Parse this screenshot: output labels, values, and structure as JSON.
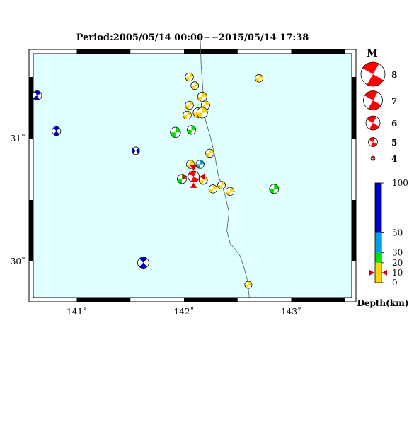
{
  "title": "Period:2005/05/14 00:00−−2015/05/14 17:38",
  "axes": {
    "lon_ticks": [
      {
        "value": 141,
        "label": "141˚"
      },
      {
        "value": 142,
        "label": "142˚"
      },
      {
        "value": 143,
        "label": "143˚"
      }
    ],
    "lat_ticks": [
      {
        "value": 31,
        "label": "31˚"
      },
      {
        "value": 30,
        "label": "30˚"
      }
    ],
    "lon_range": [
      140.55,
      143.6
    ],
    "lat_range": [
      29.7,
      31.85
    ]
  },
  "colors": {
    "ocean": "#e0ffff",
    "depth_0_10": "#ffd700",
    "depth_10_20": "#ffd700",
    "depth_20_30": "#00e000",
    "depth_30_50": "#00a0e0",
    "depth_50_100": "#0000c0",
    "legend_red": "#ff0000",
    "trench_line": "#555555",
    "marker": "#cc0000"
  },
  "magnitude_legend": {
    "heading": "M",
    "items": [
      {
        "label": "8",
        "magnitude": 8
      },
      {
        "label": "7",
        "magnitude": 7
      },
      {
        "label": "6",
        "magnitude": 6
      },
      {
        "label": "5",
        "magnitude": 5
      },
      {
        "label": "4",
        "magnitude": 4
      }
    ]
  },
  "depth_legend": {
    "title": "Depth(km)",
    "ticks": [
      {
        "label": "100",
        "depth": 100
      },
      {
        "label": "50",
        "depth": 50
      },
      {
        "label": "30",
        "depth": 30
      },
      {
        "label": "20",
        "depth": 20
      },
      {
        "label": "10",
        "depth": 10
      },
      {
        "label": "0",
        "depth": 0
      }
    ],
    "marker_depth": 10
  },
  "trench_line": [
    [
      142.15,
      31.85
    ],
    [
      142.16,
      31.6
    ],
    [
      142.18,
      31.35
    ],
    [
      142.2,
      31.15
    ],
    [
      142.25,
      31.0
    ],
    [
      142.29,
      30.85
    ],
    [
      142.32,
      30.7
    ],
    [
      142.38,
      30.55
    ],
    [
      142.42,
      30.4
    ],
    [
      142.4,
      30.25
    ],
    [
      142.43,
      30.15
    ],
    [
      142.52,
      30.05
    ],
    [
      142.56,
      29.95
    ],
    [
      142.59,
      29.85
    ],
    [
      142.61,
      29.7
    ]
  ],
  "events": [
    {
      "lon": 142.05,
      "lat": 31.5,
      "depth": 10,
      "magnitude": 4.8,
      "strike": 90
    },
    {
      "lon": 142.1,
      "lat": 31.43,
      "depth": 10,
      "magnitude": 4.7,
      "strike": 90
    },
    {
      "lon": 142.7,
      "lat": 31.49,
      "depth": 10,
      "magnitude": 4.7,
      "strike": 85
    },
    {
      "lon": 142.17,
      "lat": 31.34,
      "depth": 10,
      "magnitude": 5.0,
      "strike": 90
    },
    {
      "lon": 142.05,
      "lat": 31.27,
      "depth": 10,
      "magnitude": 4.8,
      "strike": 90
    },
    {
      "lon": 142.2,
      "lat": 31.27,
      "depth": 10,
      "magnitude": 4.9,
      "strike": 85
    },
    {
      "lon": 142.13,
      "lat": 31.21,
      "depth": 10,
      "magnitude": 5.1,
      "strike": 90
    },
    {
      "lon": 142.17,
      "lat": 31.21,
      "depth": 10,
      "magnitude": 5.3,
      "strike": 90
    },
    {
      "lon": 142.03,
      "lat": 31.19,
      "depth": 10,
      "magnitude": 4.8,
      "strike": 90
    },
    {
      "lon": 141.92,
      "lat": 31.05,
      "depth": 25,
      "magnitude": 5.2,
      "strike": 90
    },
    {
      "lon": 142.07,
      "lat": 31.07,
      "depth": 25,
      "magnitude": 4.9,
      "strike": 90
    },
    {
      "lon": 142.24,
      "lat": 30.88,
      "depth": 10,
      "magnitude": 4.8,
      "strike": 90
    },
    {
      "lon": 142.15,
      "lat": 30.79,
      "depth": 40,
      "magnitude": 4.8,
      "strike": 90
    },
    {
      "lon": 142.06,
      "lat": 30.79,
      "depth": 10,
      "magnitude": 4.8,
      "strike": 90
    },
    {
      "lon": 141.98,
      "lat": 30.67,
      "depth": 25,
      "magnitude": 5.0,
      "strike": 90
    },
    {
      "lon": 142.18,
      "lat": 30.66,
      "depth": 10,
      "magnitude": 4.8,
      "strike": 90
    },
    {
      "lon": 142.35,
      "lat": 30.62,
      "depth": 10,
      "magnitude": 4.7,
      "strike": 90
    },
    {
      "lon": 142.27,
      "lat": 30.59,
      "depth": 10,
      "magnitude": 4.8,
      "strike": 90
    },
    {
      "lon": 142.43,
      "lat": 30.57,
      "depth": 10,
      "magnitude": 4.8,
      "strike": 90
    },
    {
      "lon": 142.84,
      "lat": 30.59,
      "depth": 25,
      "magnitude": 5.0,
      "strike": 90
    },
    {
      "lon": 142.6,
      "lat": 29.81,
      "depth": 10,
      "magnitude": 4.6,
      "strike": 90
    },
    {
      "lon": 140.63,
      "lat": 31.35,
      "depth": 80,
      "magnitude": 5.0,
      "strike": 60
    },
    {
      "lon": 140.81,
      "lat": 31.06,
      "depth": 80,
      "magnitude": 4.9,
      "strike": 45
    },
    {
      "lon": 141.55,
      "lat": 30.9,
      "depth": 80,
      "magnitude": 4.7,
      "strike": 135
    },
    {
      "lon": 141.62,
      "lat": 29.99,
      "depth": 80,
      "magnitude": 5.4,
      "strike": 45
    },
    {
      "lon": 142.09,
      "lat": 30.69,
      "depth": 10,
      "magnitude": 5.4,
      "strike": 30,
      "main_shock": true
    }
  ]
}
